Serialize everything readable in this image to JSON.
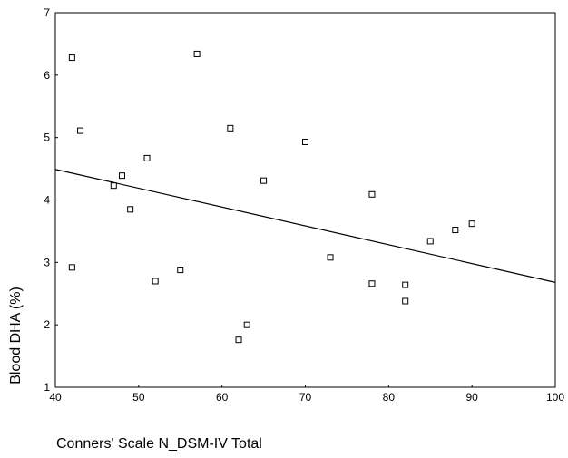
{
  "chart_data": {
    "type": "scatter",
    "xlabel": "Conners' Scale N_DSM-IV Total",
    "ylabel": "Blood DHA (%)",
    "xlim": [
      40,
      100
    ],
    "ylim": [
      1,
      7
    ],
    "x_ticks": [
      40,
      50,
      60,
      70,
      80,
      90,
      100
    ],
    "y_ticks": [
      1,
      2,
      3,
      4,
      5,
      6,
      7
    ],
    "grid": false,
    "marker": "open-square",
    "points": [
      {
        "x": 42,
        "y": 6.28
      },
      {
        "x": 42,
        "y": 2.92
      },
      {
        "x": 43,
        "y": 5.11
      },
      {
        "x": 47,
        "y": 4.23
      },
      {
        "x": 48,
        "y": 4.39
      },
      {
        "x": 49,
        "y": 3.85
      },
      {
        "x": 51,
        "y": 4.67
      },
      {
        "x": 52,
        "y": 2.7
      },
      {
        "x": 55,
        "y": 2.88
      },
      {
        "x": 57,
        "y": 6.34
      },
      {
        "x": 61,
        "y": 5.15
      },
      {
        "x": 62,
        "y": 1.76
      },
      {
        "x": 63,
        "y": 2.0
      },
      {
        "x": 65,
        "y": 4.31
      },
      {
        "x": 70,
        "y": 4.93
      },
      {
        "x": 73,
        "y": 3.08
      },
      {
        "x": 78,
        "y": 4.09
      },
      {
        "x": 78,
        "y": 2.66
      },
      {
        "x": 82,
        "y": 2.64
      },
      {
        "x": 82,
        "y": 2.38
      },
      {
        "x": 85,
        "y": 3.34
      },
      {
        "x": 88,
        "y": 3.52
      },
      {
        "x": 90,
        "y": 3.62
      }
    ],
    "fit_line": {
      "x1": 40,
      "y1": 4.49,
      "x2": 100,
      "y2": 2.68
    }
  }
}
